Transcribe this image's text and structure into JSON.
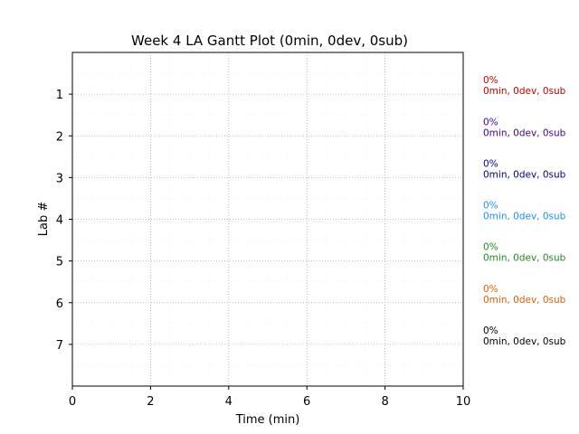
{
  "chart_data": {
    "type": "bar",
    "title": "Week 4 LA Gantt Plot (0min, 0dev, 0sub)",
    "xlabel": "Time (min)",
    "ylabel": "Lab #",
    "xlim": [
      0,
      10
    ],
    "ylim": [
      8,
      0
    ],
    "x_ticks": [
      0,
      2,
      4,
      6,
      8,
      10
    ],
    "y_ticks": [
      1,
      2,
      3,
      4,
      5,
      6,
      7
    ],
    "grid": true,
    "series": [
      {
        "lab": 1,
        "value_min": 0,
        "percent": "0%",
        "summary": "0min, 0dev, 0sub",
        "color": "#cc0000"
      },
      {
        "lab": 2,
        "value_min": 0,
        "percent": "0%",
        "summary": "0min, 0dev, 0sub",
        "color": "#4b0082"
      },
      {
        "lab": 3,
        "value_min": 0,
        "percent": "0%",
        "summary": "0min, 0dev, 0sub",
        "color": "#000080"
      },
      {
        "lab": 4,
        "value_min": 0,
        "percent": "0%",
        "summary": "0min, 0dev, 0sub",
        "color": "#1e90ff"
      },
      {
        "lab": 5,
        "value_min": 0,
        "percent": "0%",
        "summary": "0min, 0dev, 0sub",
        "color": "#228b22"
      },
      {
        "lab": 6,
        "value_min": 0,
        "percent": "0%",
        "summary": "0min, 0dev, 0sub",
        "color": "#e65c00"
      },
      {
        "lab": 7,
        "value_min": 0,
        "percent": "0%",
        "summary": "0min, 0dev, 0sub",
        "color": "#000000"
      }
    ]
  }
}
